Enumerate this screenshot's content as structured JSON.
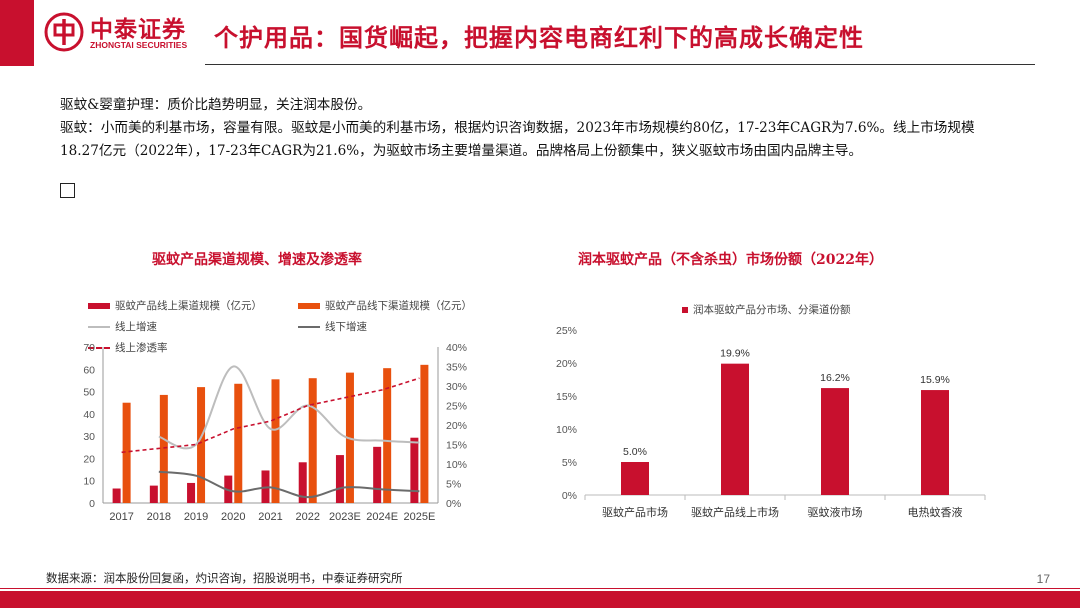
{
  "header": {
    "logo_cn": "中泰证券",
    "logo_en": "ZHONGTAI SECURITIES",
    "title": "个护用品：国货崛起，把握内容电商红利下的高成长确定性"
  },
  "body": {
    "line1": "驱蚊&婴童护理：质价比趋势明显，关注润本股份。",
    "line2": "驱蚊：小而美的利基市场，容量有限。驱蚊是小而美的利基市场，根据灼识咨询数据，2023年市场规模约80亿，17-23年CAGR为7.6%。线上市场规模18.27亿元（2022年），17-23年CAGR为21.6%，为驱蚊市场主要增量渠道。品牌格局上份额集中，狭义驱蚊市场由国内品牌主导。"
  },
  "colors": {
    "dark_red": "#c8102e",
    "orange": "#e8500e",
    "light_gray": "#bdbdbd",
    "dark_gray": "#6b6b6b"
  },
  "chart_data": [
    {
      "type": "bar",
      "title": "驱蚊产品渠道规模、增速及渗透率",
      "categories": [
        "2017",
        "2018",
        "2019",
        "2020",
        "2021",
        "2022",
        "2023E",
        "2024E",
        "2025E"
      ],
      "ylim": [
        0,
        70
      ],
      "yticks": [
        0,
        10,
        20,
        30,
        40,
        50,
        60,
        70
      ],
      "y2lim": [
        0,
        40
      ],
      "y2ticks": [
        "0%",
        "5%",
        "10%",
        "15%",
        "20%",
        "25%",
        "30%",
        "35%",
        "40%"
      ],
      "legend_placement": "top",
      "series": [
        {
          "name": "驱蚊产品线上渠道规模（亿元）",
          "kind": "bar",
          "axis": "left",
          "values": [
            6.5,
            7.8,
            9.0,
            12.3,
            14.6,
            18.27,
            21.5,
            25.2,
            29.3
          ]
        },
        {
          "name": "驱蚊产品线下渠道规模（亿元）",
          "kind": "bar",
          "axis": "left",
          "values": [
            45,
            48.5,
            52,
            53.5,
            55.5,
            56,
            58.5,
            60.5,
            62
          ]
        },
        {
          "name": "线上增速",
          "kind": "line",
          "axis": "right",
          "values": [
            null,
            17,
            15,
            35,
            19,
            25,
            17,
            16,
            15.5
          ]
        },
        {
          "name": "线下增速",
          "kind": "line",
          "axis": "right",
          "values": [
            null,
            8,
            7,
            3,
            4,
            1.5,
            4,
            3.5,
            3
          ]
        },
        {
          "name": "线上渗透率",
          "kind": "dashed-line",
          "axis": "right",
          "values": [
            13,
            14,
            15,
            19,
            21,
            25,
            27,
            29,
            32
          ]
        }
      ]
    },
    {
      "type": "bar",
      "title": "润本驱蚊产品（不含杀虫）市场份额（2022年）",
      "categories": [
        "驱蚊产品市场",
        "驱蚊产品线上市场",
        "驱蚊液市场",
        "电热蚊香液"
      ],
      "ylim": [
        0,
        25
      ],
      "yticks": [
        "0%",
        "5%",
        "10%",
        "15%",
        "20%",
        "25%"
      ],
      "legend_placement": "top",
      "series": [
        {
          "name": "润本驱蚊产品分市场、分渠道份额",
          "values": [
            5.0,
            19.9,
            16.2,
            15.9
          ],
          "labels": [
            "5.0%",
            "19.9%",
            "16.2%",
            "15.9%"
          ]
        }
      ]
    }
  ],
  "footer": {
    "source": "数据来源：润本股份回复函，灼识咨询，招股说明书，中泰证券研究所",
    "page": "17"
  }
}
